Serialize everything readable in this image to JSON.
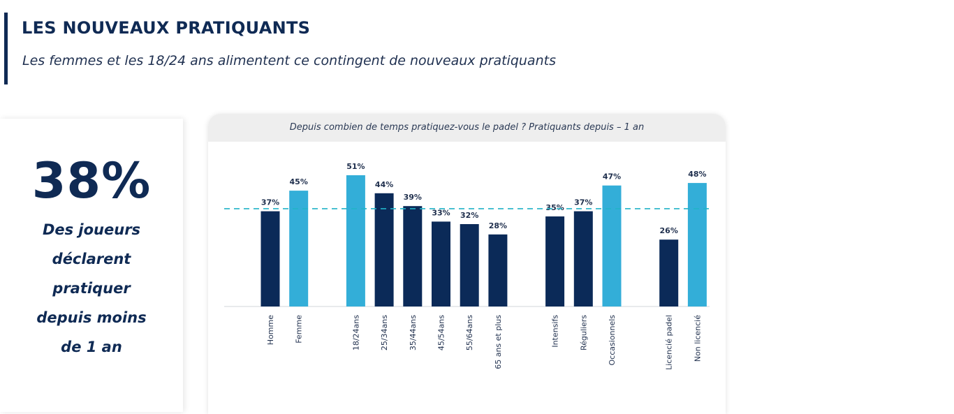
{
  "header": {
    "title": "LES NOUVEAUX PRATIQUANTS",
    "subtitle": "Les femmes et les 18/24 ans alimentent ce contingent de nouveaux pratiquants"
  },
  "kpi": {
    "value": "38%",
    "description_lines": [
      "Des joueurs",
      "déclarent",
      "pratiquer",
      "depuis moins",
      "de 1 an"
    ]
  },
  "chart_data": {
    "type": "bar",
    "title": "Depuis combien de temps pratiquez-vous le padel ? Pratiquants depuis – 1 an",
    "xlabel": "",
    "ylabel": "",
    "ylim": [
      0,
      60
    ],
    "grid": false,
    "legend": "none",
    "reference_line": {
      "value": 38,
      "style": "dashed",
      "color": "#22b3c7"
    },
    "colors": {
      "dark": "#0b2a58",
      "light": "#33aed8"
    },
    "groups": [
      {
        "categories": [
          "Homme",
          "Femme"
        ],
        "values": [
          37,
          45
        ],
        "labels": [
          "37%",
          "45%"
        ],
        "highlight": [
          false,
          true
        ]
      },
      {
        "categories": [
          "18/24ans",
          "25/34ans",
          "35/44ans",
          "45/54ans",
          "55/64ans",
          "65 ans et plus"
        ],
        "values": [
          51,
          44,
          39,
          33,
          32,
          28
        ],
        "labels": [
          "51%",
          "44%",
          "39%",
          "33%",
          "32%",
          "28%"
        ],
        "highlight": [
          true,
          false,
          false,
          false,
          false,
          false
        ]
      },
      {
        "categories": [
          "Intensifs",
          "Réguliers",
          "Occasionnels"
        ],
        "values": [
          35,
          37,
          47
        ],
        "labels": [
          "35%",
          "37%",
          "47%"
        ],
        "highlight": [
          false,
          false,
          true
        ]
      },
      {
        "categories": [
          "Licencié padel",
          "Non licencié"
        ],
        "values": [
          26,
          48
        ],
        "labels": [
          "26%",
          "48%"
        ],
        "highlight": [
          false,
          true
        ]
      }
    ]
  }
}
